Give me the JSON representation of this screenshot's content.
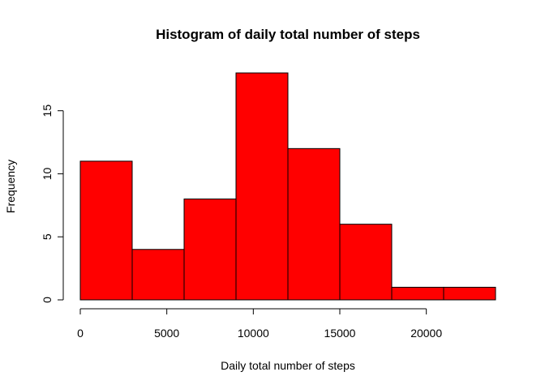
{
  "chart_data": {
    "type": "bar",
    "title": "Histogram of daily total number of steps",
    "xlabel": "Daily total number of steps",
    "ylabel": "Frequency",
    "bins": [
      {
        "start": 0,
        "end": 3000,
        "count": 11
      },
      {
        "start": 3000,
        "end": 6000,
        "count": 4
      },
      {
        "start": 6000,
        "end": 9000,
        "count": 8
      },
      {
        "start": 9000,
        "end": 12000,
        "count": 18
      },
      {
        "start": 12000,
        "end": 15000,
        "count": 12
      },
      {
        "start": 15000,
        "end": 18000,
        "count": 6
      },
      {
        "start": 18000,
        "end": 21000,
        "count": 1
      },
      {
        "start": 21000,
        "end": 24000,
        "count": 1
      }
    ],
    "xlim": [
      0,
      24000
    ],
    "ylim": [
      0,
      18
    ],
    "xticks": [
      0,
      5000,
      10000,
      15000,
      20000
    ],
    "yticks": [
      0,
      5,
      10,
      15
    ],
    "bar_color": "#ff0000",
    "border_color": "#000000",
    "grid": false,
    "legend": "none"
  }
}
